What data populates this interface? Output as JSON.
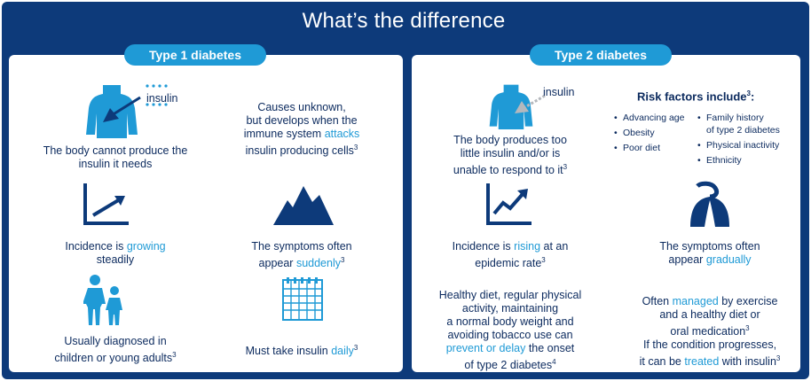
{
  "title": "What’s the difference",
  "type1": {
    "heading": "Type 1 diabetes",
    "insulin_label": "insulin",
    "produce": [
      "The body cannot produce the",
      "insulin it needs"
    ],
    "causes": {
      "l1": "Causes unknown,",
      "l2": "but develops when the",
      "l3a": "immune system ",
      "l3b": "attacks",
      "l4": "insulin producing cells",
      "l4sup": "3"
    },
    "incidence": {
      "a": "Incidence is ",
      "b": "growing",
      "c": "steadily"
    },
    "symptoms": {
      "l1": "The symptoms often",
      "l2a": "appear ",
      "l2b": "suddenly",
      "sup": "3"
    },
    "diagnosed": {
      "l1": "Usually diagnosed in",
      "l2": "children or young adults",
      "sup": "3"
    },
    "insulin_daily": {
      "a": "Must take insulin ",
      "b": "daily",
      "sup": "3"
    }
  },
  "type2": {
    "heading": "Type 2 diabetes",
    "insulin_label": "insulin",
    "produce": {
      "l1": "The body produces too",
      "l2": "little insulin and/or is",
      "l3": "unable to respond to it",
      "sup": "3"
    },
    "risk_title": "Risk factors include",
    "risk_title_sup": "3",
    "risk_col1": [
      "Advancing age",
      "Obesity",
      "Poor diet"
    ],
    "risk_col2_family": [
      "Family history",
      "of type 2 diabetes"
    ],
    "risk_col2": [
      "Physical inactivity",
      "Ethnicity"
    ],
    "incidence": {
      "a": "Incidence is ",
      "b": "rising",
      "c": " at an",
      "d": "epidemic rate",
      "sup": "3"
    },
    "symptoms": {
      "l1": "The symptoms often",
      "l2a": "appear ",
      "l2b": "gradually"
    },
    "healthy": {
      "l1": "Healthy diet, regular physical",
      "l2": "activity, maintaining",
      "l3": "a normal body weight and",
      "l4": "avoiding tobacco use can",
      "l5a": "prevent or delay",
      "l5b": " the onset",
      "l6": "of type 2 diabetes",
      "sup": "4"
    },
    "managed": {
      "l1a": "Often ",
      "l1b": "managed",
      "l1c": " by exercise",
      "l2": "and a healthy diet or",
      "l3": "oral medication",
      "l3sup": "3",
      "l4": "If the condition progresses,",
      "l5a": "it can be ",
      "l5b": "treated",
      "l5c": " with insulin",
      "l5sup": "3"
    }
  },
  "colors": {
    "navy": "#0d3a7a",
    "accent": "#1f9ad6",
    "text": "#0b2a5e",
    "icon": "#0d3a7a",
    "body_icon": "#1f9ad6"
  }
}
